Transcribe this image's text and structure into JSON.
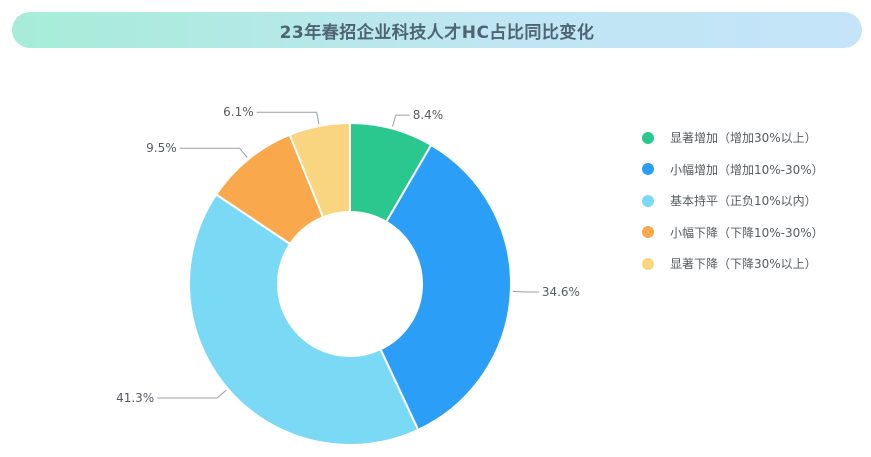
{
  "chart_data": {
    "type": "donut",
    "title": "23年春招企业科技人才HC占比同比变化",
    "categories": [
      "显著增加（增加30%以上）",
      "小幅增加（增加10%-30%）",
      "基本持平（正负10%以内）",
      "小幅下降（下降10%-30%）",
      "显著下降（下降30%以上）"
    ],
    "values": [
      8.4,
      34.6,
      41.3,
      9.5,
      6.1
    ],
    "value_labels": [
      "8.4%",
      "34.6%",
      "41.3%",
      "9.5%",
      "6.1%"
    ],
    "colors": [
      "#2ac88f",
      "#2b9ff7",
      "#7ad9f5",
      "#f9a94b",
      "#f8d57e"
    ],
    "legend_position": "right",
    "start_angle": "12 o'clock, clockwise"
  }
}
